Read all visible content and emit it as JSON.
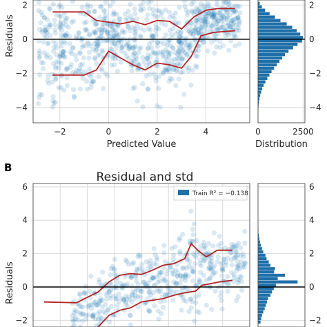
{
  "colors": {
    "points": "#1f77b4",
    "bars": "#1f6fa8",
    "band": "#b22222",
    "zero": "#000000",
    "grid": "#d9d9d9"
  },
  "chart_data": [
    {
      "panel_label": "",
      "type": "scatter",
      "title": "",
      "xlabel": "Predicted Value",
      "ylabel": "Residuals",
      "x_ticks": [
        "−2",
        "0",
        "2",
        "4"
      ],
      "y_ticks": [
        "−4",
        "−2",
        "0",
        "2"
      ],
      "xlim": [
        -3.1,
        5.8
      ],
      "ylim": [
        -4.9,
        2.3
      ],
      "zero_line": 0,
      "upper_band": {
        "x": [
          -2.3,
          -1.6,
          -1.0,
          -0.5,
          0,
          0.5,
          1.0,
          1.5,
          2.0,
          2.5,
          3.0,
          3.5,
          4.0,
          4.5,
          5.2
        ],
        "y": [
          1.6,
          1.6,
          1.6,
          1.1,
          1.0,
          0.9,
          1.05,
          0.85,
          1.1,
          1.05,
          0.6,
          1.3,
          1.7,
          1.8,
          1.8
        ]
      },
      "lower_band": {
        "x": [
          -2.3,
          -1.6,
          -1.0,
          -0.5,
          0,
          0.5,
          1.0,
          1.5,
          2.0,
          2.5,
          3.0,
          3.4,
          3.8,
          4.3,
          5.2
        ],
        "y": [
          -2.1,
          -2.1,
          -2.1,
          -1.8,
          -0.7,
          -1.1,
          -1.5,
          -1.8,
          -1.4,
          -1.5,
          -1.7,
          -1.0,
          0.2,
          0.4,
          0.5
        ]
      },
      "point_region": {
        "xmin": -2.9,
        "xmax": 5.4,
        "ymin": -4.6,
        "ymax": 2.3
      },
      "point_count": 900,
      "hist": {
        "xlabel": "Distribution",
        "x_ticks": [
          "0",
          "2500"
        ],
        "xlim": [
          0,
          2600
        ],
        "bins_y": [
          -4.2,
          -4.0,
          -3.8,
          -3.6,
          -3.4,
          -3.2,
          -3.0,
          -2.8,
          -2.6,
          -2.4,
          -2.2,
          -2.0,
          -1.8,
          -1.6,
          -1.4,
          -1.2,
          -1.0,
          -0.8,
          -0.6,
          -0.4,
          -0.2,
          0.0,
          0.2,
          0.4,
          0.6,
          0.8,
          1.0,
          1.2,
          1.4,
          1.6,
          1.8,
          2.0
        ],
        "counts": [
          20,
          40,
          60,
          90,
          130,
          180,
          240,
          320,
          420,
          520,
          640,
          760,
          900,
          1050,
          1200,
          1350,
          1500,
          1700,
          1950,
          2200,
          2450,
          2500,
          2350,
          2150,
          1900,
          1600,
          1250,
          950,
          650,
          400,
          220,
          100
        ]
      }
    },
    {
      "panel_label": "B",
      "type": "scatter",
      "title": "Residual and std",
      "xlabel": "",
      "ylabel": "Residuals",
      "legend": "Train R² = −0.138",
      "y_ticks": [
        "−2",
        "0",
        "2",
        "4",
        "6"
      ],
      "xlim": [
        0,
        10
      ],
      "ylim": [
        -2.4,
        6.2
      ],
      "zero_line": 0,
      "upper_band": {
        "x": [
          0.5,
          2.0,
          3.0,
          3.5,
          4.0,
          4.5,
          5.0,
          5.5,
          6.0,
          6.5,
          7.0,
          7.3,
          7.6,
          8.0,
          8.5,
          9.2
        ],
        "y": [
          -0.9,
          -0.95,
          -0.3,
          0.3,
          0.7,
          0.8,
          0.75,
          1.0,
          1.3,
          1.4,
          1.7,
          2.6,
          2.2,
          1.8,
          2.2,
          2.2
        ]
      },
      "lower_band": {
        "x": [
          3.0,
          3.5,
          4.0,
          4.5,
          5.0,
          5.5,
          6.0,
          6.5,
          7.0,
          7.5,
          7.8,
          8.2,
          8.6,
          9.2
        ],
        "y": [
          -2.4,
          -1.7,
          -1.4,
          -1.25,
          -0.9,
          -0.8,
          -0.7,
          -0.5,
          -0.35,
          -0.25,
          0.1,
          0.2,
          0.3,
          0.4
        ]
      },
      "point_region": {
        "xmin": 1.8,
        "xmax": 9.8,
        "ymin": -2.4,
        "ymax": 4.8
      },
      "point_count": 520,
      "hist": {
        "xlabel": "",
        "bins_y": [
          -2.2,
          -2.0,
          -1.8,
          -1.6,
          -1.4,
          -1.2,
          -1.0,
          -0.8,
          -0.6,
          -0.4,
          -0.2,
          0.0,
          0.2,
          0.4,
          0.6,
          0.8,
          1.0,
          1.2,
          1.4,
          1.6,
          1.8,
          2.0,
          2.2,
          2.4,
          2.6,
          2.8,
          3.0,
          3.2,
          3.4
        ],
        "counts": [
          150,
          180,
          230,
          300,
          380,
          440,
          500,
          560,
          700,
          780,
          880,
          1000,
          2200,
          1100,
          1500,
          900,
          950,
          700,
          600,
          480,
          420,
          300,
          230,
          160,
          120,
          80,
          50,
          30,
          20
        ],
        "xlim": [
          0,
          2600
        ]
      }
    }
  ]
}
